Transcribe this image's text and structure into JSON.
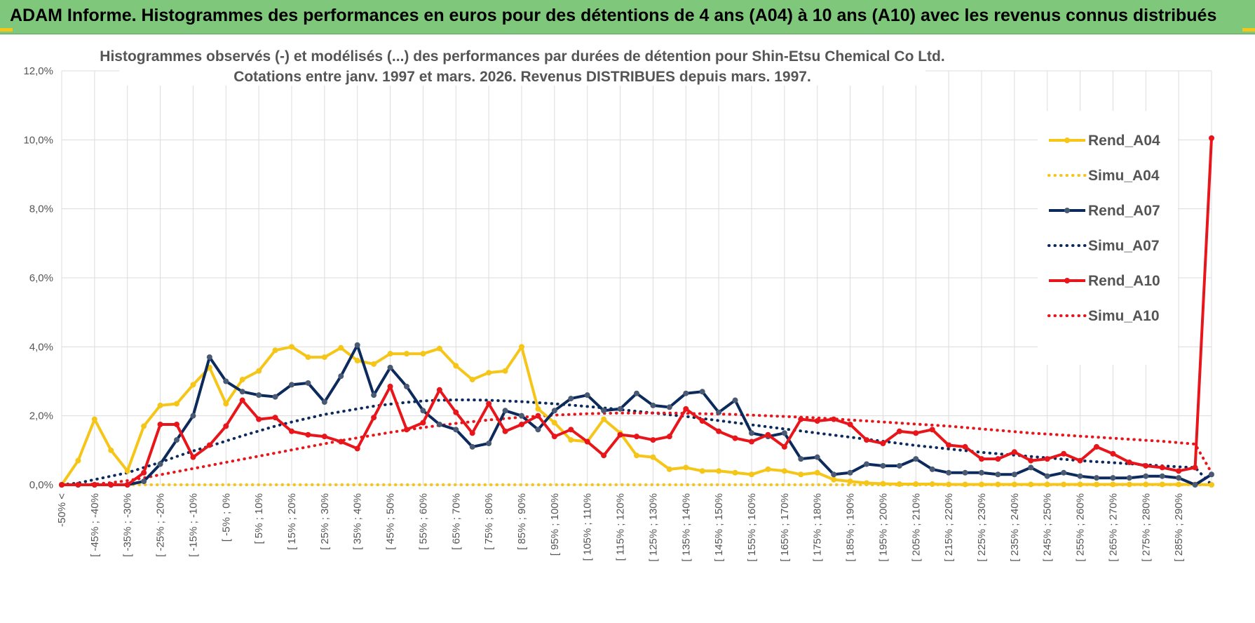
{
  "header": {
    "title": "ADAM Informe. Histogrammes des performances en euros pour des détentions de 4 ans (A04) à 10 ans (A10) avec les revenus connus distribués",
    "bar_color": "#7ec77b"
  },
  "chart_data": {
    "type": "line",
    "title_line1": "Histogrammes observés (-) et modélisés (...) des performances par durées de détention pour Shin-Etsu Chemical Co Ltd.",
    "title_line2": "Cotations entre janv. 1997 et mars. 2026.  Revenus DISTRIBUES depuis mars. 1997.",
    "xlabel": "",
    "ylabel": "",
    "ylim": [
      0,
      12
    ],
    "y_ticks": [
      "0,0%",
      "2,0%",
      "4,0%",
      "6,0%",
      "8,0%",
      "10,0%",
      "12,0%"
    ],
    "grid": true,
    "legend_position": "right",
    "x_labels": [
      "-50% <",
      "[ -45% ; -40%",
      "[ -35% ; -30%",
      "[ -25% ; -20%",
      "[ -15% ; -10%",
      "[ -5% ; 0%",
      "[ 5% ; 10%",
      "[ 15% ; 20%",
      "[ 25% ; 30%",
      "[ 35% ; 40%",
      "[ 45% ; 50%",
      "[ 55% ; 60%",
      "[ 65% ; 70%",
      "[ 75% ; 80%",
      "[ 85% ; 90%",
      "[ 95% ; 100%",
      "[ 105% ; 110%",
      "[ 115% ; 120%",
      "[ 125% ; 130%",
      "[ 135% ; 140%",
      "[ 145% ; 150%",
      "[ 155% ; 160%",
      "[ 165% ; 170%",
      "[ 175% ; 180%",
      "[ 185% ; 190%",
      "[ 195% ; 200%",
      "[ 205% ; 210%",
      "[ 215% ; 220%",
      "[ 225% ; 230%",
      "[ 235% ; 240%",
      "[ 245% ; 250%",
      "[ 255% ; 260%",
      "[ 265% ; 270%",
      "[ 275% ; 280%",
      "[ 285% ; 290%"
    ],
    "series": [
      {
        "name": "Rend_A04",
        "style": "solid",
        "color": "#f5c518",
        "values": [
          0.0,
          0.7,
          1.9,
          1.0,
          0.4,
          1.7,
          2.3,
          2.35,
          2.9,
          3.4,
          2.35,
          3.05,
          3.3,
          3.9,
          4.0,
          3.7,
          3.7,
          3.97,
          3.6,
          3.5,
          3.8,
          3.8,
          3.8,
          3.95,
          3.45,
          3.05,
          3.25,
          3.3,
          4.0,
          2.2,
          1.8,
          1.3,
          1.25,
          1.9,
          1.5,
          0.85,
          0.8,
          0.45,
          0.5,
          0.4,
          0.4,
          0.35,
          0.3,
          0.45,
          0.4,
          0.3,
          0.35,
          0.15,
          0.1,
          0.05,
          0.03,
          0.02,
          0.02,
          0.02,
          0.01,
          0.01,
          0.01,
          0.01,
          0.01,
          0.01,
          0.01,
          0.01,
          0.01,
          0.01,
          0.01,
          0.01,
          0.01,
          0.01,
          0.01,
          0.01,
          0.0
        ]
      },
      {
        "name": "Simu_A04",
        "style": "dotted",
        "color": "#f5c518",
        "values": [
          0.0,
          0.0,
          0.0,
          0.0,
          0.0,
          0.0,
          0.0,
          0.0,
          0.0,
          0.0,
          0.0,
          0.0,
          0.0,
          0.0,
          0.0,
          0.0,
          0.0,
          0.0,
          0.0,
          0.0,
          0.0,
          0.0,
          0.0,
          0.0,
          0.0,
          0.0,
          0.0,
          0.0,
          0.0,
          0.0,
          0.0,
          0.0,
          0.0,
          0.0,
          0.0,
          0.0,
          0.0,
          0.0,
          0.0,
          0.0,
          0.0,
          0.0,
          0.0,
          0.0,
          0.0,
          0.0,
          0.0,
          0.0,
          0.0,
          0.0,
          0.0,
          0.0,
          0.0,
          0.0,
          0.0,
          0.0,
          0.0,
          0.0,
          0.0,
          0.0,
          0.0,
          0.0,
          0.0,
          0.0,
          0.0,
          0.0,
          0.0,
          0.0,
          0.0,
          0.0,
          0.0
        ]
      },
      {
        "name": "Rend_A07",
        "style": "solid",
        "color": "#0d2a5c",
        "values": [
          0.0,
          0.0,
          0.0,
          0.0,
          0.0,
          0.1,
          0.6,
          1.3,
          2.0,
          3.7,
          3.0,
          2.7,
          2.6,
          2.55,
          2.9,
          2.95,
          2.4,
          3.15,
          4.05,
          2.6,
          3.4,
          2.85,
          2.15,
          1.75,
          1.6,
          1.1,
          1.2,
          2.15,
          2.0,
          1.6,
          2.15,
          2.5,
          2.6,
          2.15,
          2.2,
          2.65,
          2.3,
          2.25,
          2.65,
          2.7,
          2.1,
          2.45,
          1.5,
          1.4,
          1.5,
          0.75,
          0.8,
          0.3,
          0.35,
          0.6,
          0.55,
          0.55,
          0.75,
          0.45,
          0.35,
          0.35,
          0.35,
          0.3,
          0.3,
          0.5,
          0.25,
          0.35,
          0.25,
          0.2,
          0.2,
          0.2,
          0.25,
          0.25,
          0.2,
          0.0,
          0.3
        ]
      },
      {
        "name": "Simu_A07",
        "style": "dotted",
        "color": "#0d2a5c",
        "values": [
          0.0,
          0.05,
          0.15,
          0.25,
          0.35,
          0.5,
          0.65,
          0.82,
          0.98,
          1.12,
          1.27,
          1.42,
          1.56,
          1.7,
          1.82,
          1.93,
          2.04,
          2.12,
          2.2,
          2.28,
          2.34,
          2.39,
          2.43,
          2.45,
          2.46,
          2.46,
          2.45,
          2.43,
          2.41,
          2.38,
          2.35,
          2.31,
          2.27,
          2.23,
          2.18,
          2.13,
          2.08,
          2.03,
          1.98,
          1.92,
          1.86,
          1.8,
          1.74,
          1.68,
          1.62,
          1.56,
          1.5,
          1.44,
          1.38,
          1.32,
          1.26,
          1.2,
          1.14,
          1.09,
          1.04,
          0.99,
          0.94,
          0.9,
          0.86,
          0.82,
          0.78,
          0.74,
          0.7,
          0.67,
          0.64,
          0.61,
          0.58,
          0.55,
          0.52,
          0.5,
          0.0
        ]
      },
      {
        "name": "Rend_A10",
        "style": "solid",
        "color": "#e8151b",
        "values": [
          0.0,
          0.0,
          0.0,
          0.0,
          0.0,
          0.35,
          1.75,
          1.75,
          0.8,
          1.15,
          1.7,
          2.45,
          1.9,
          1.95,
          1.55,
          1.45,
          1.4,
          1.25,
          1.05,
          1.95,
          2.85,
          1.6,
          1.8,
          2.75,
          2.1,
          1.5,
          2.35,
          1.55,
          1.75,
          2.0,
          1.4,
          1.6,
          1.25,
          0.85,
          1.45,
          1.4,
          1.3,
          1.4,
          2.2,
          1.85,
          1.55,
          1.35,
          1.25,
          1.45,
          1.1,
          1.9,
          1.85,
          1.9,
          1.75,
          1.3,
          1.2,
          1.55,
          1.5,
          1.6,
          1.15,
          1.1,
          0.75,
          0.75,
          0.95,
          0.7,
          0.75,
          0.9,
          0.7,
          1.1,
          0.9,
          0.65,
          0.55,
          0.5,
          0.4,
          0.5,
          10.05
        ]
      },
      {
        "name": "Simu_A10",
        "style": "dotted",
        "color": "#e8151b",
        "values": [
          0.0,
          0.0,
          0.02,
          0.06,
          0.12,
          0.2,
          0.29,
          0.38,
          0.47,
          0.56,
          0.65,
          0.74,
          0.83,
          0.92,
          1.01,
          1.1,
          1.19,
          1.28,
          1.36,
          1.44,
          1.52,
          1.59,
          1.66,
          1.72,
          1.78,
          1.83,
          1.88,
          1.92,
          1.96,
          1.99,
          2.02,
          2.04,
          2.06,
          2.07,
          2.08,
          2.08,
          2.08,
          2.08,
          2.07,
          2.06,
          2.05,
          2.04,
          2.02,
          2.0,
          1.98,
          1.96,
          1.94,
          1.91,
          1.88,
          1.85,
          1.82,
          1.79,
          1.76,
          1.73,
          1.7,
          1.66,
          1.62,
          1.58,
          1.54,
          1.5,
          1.47,
          1.44,
          1.41,
          1.38,
          1.35,
          1.32,
          1.29,
          1.26,
          1.22,
          1.18,
          0.35
        ]
      }
    ]
  }
}
